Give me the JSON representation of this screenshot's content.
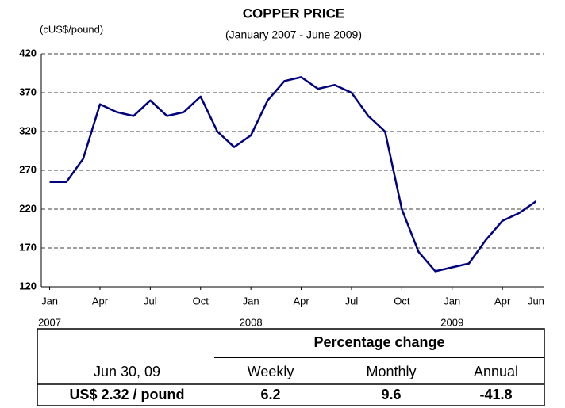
{
  "chart_data": {
    "type": "line",
    "title": "COPPER PRICE",
    "subtitle": "(January 2007 - June 2009)",
    "y_label": "(cUS$/pound)",
    "x": [
      "2007-01",
      "2007-02",
      "2007-03",
      "2007-04",
      "2007-05",
      "2007-06",
      "2007-07",
      "2007-08",
      "2007-09",
      "2007-10",
      "2007-11",
      "2007-12",
      "2008-01",
      "2008-02",
      "2008-03",
      "2008-04",
      "2008-05",
      "2008-06",
      "2008-07",
      "2008-08",
      "2008-09",
      "2008-10",
      "2008-11",
      "2008-12",
      "2009-01",
      "2009-02",
      "2009-03",
      "2009-04",
      "2009-05",
      "2009-06"
    ],
    "series": [
      {
        "name": "Copper",
        "color": "#000080",
        "values": [
          255,
          255,
          285,
          355,
          345,
          340,
          360,
          340,
          345,
          365,
          320,
          300,
          315,
          360,
          385,
          390,
          375,
          380,
          370,
          340,
          320,
          220,
          165,
          140,
          145,
          150,
          180,
          205,
          215,
          230
        ]
      }
    ],
    "ylim": [
      120,
      420
    ],
    "yticks": [
      120,
      170,
      220,
      270,
      320,
      370,
      420
    ],
    "grid": true,
    "xticks": [
      {
        "value": "2007-01",
        "label": "Jan"
      },
      {
        "value": "2007-04",
        "label": "Apr"
      },
      {
        "value": "2007-07",
        "label": "Jul"
      },
      {
        "value": "2007-10",
        "label": "Oct"
      },
      {
        "value": "2008-01",
        "label": "Jan"
      },
      {
        "value": "2008-04",
        "label": "Apr"
      },
      {
        "value": "2008-07",
        "label": "Jul"
      },
      {
        "value": "2008-10",
        "label": "Oct"
      },
      {
        "value": "2009-01",
        "label": "Jan"
      },
      {
        "value": "2009-04",
        "label": "Apr"
      },
      {
        "value": "2009-06",
        "label": "Jun"
      }
    ],
    "xtick_years": [
      {
        "value": "2007-01",
        "label": "2007"
      },
      {
        "value": "2008-01",
        "label": "2008"
      },
      {
        "value": "2009-01",
        "label": "2009"
      }
    ]
  },
  "table": {
    "header": "Percentage change",
    "columns": [
      "Jun 30, 09",
      "Weekly",
      "Monthly",
      "Annual"
    ],
    "row": [
      "US$ 2.32 / pound",
      6.2,
      9.6,
      -41.8
    ]
  }
}
